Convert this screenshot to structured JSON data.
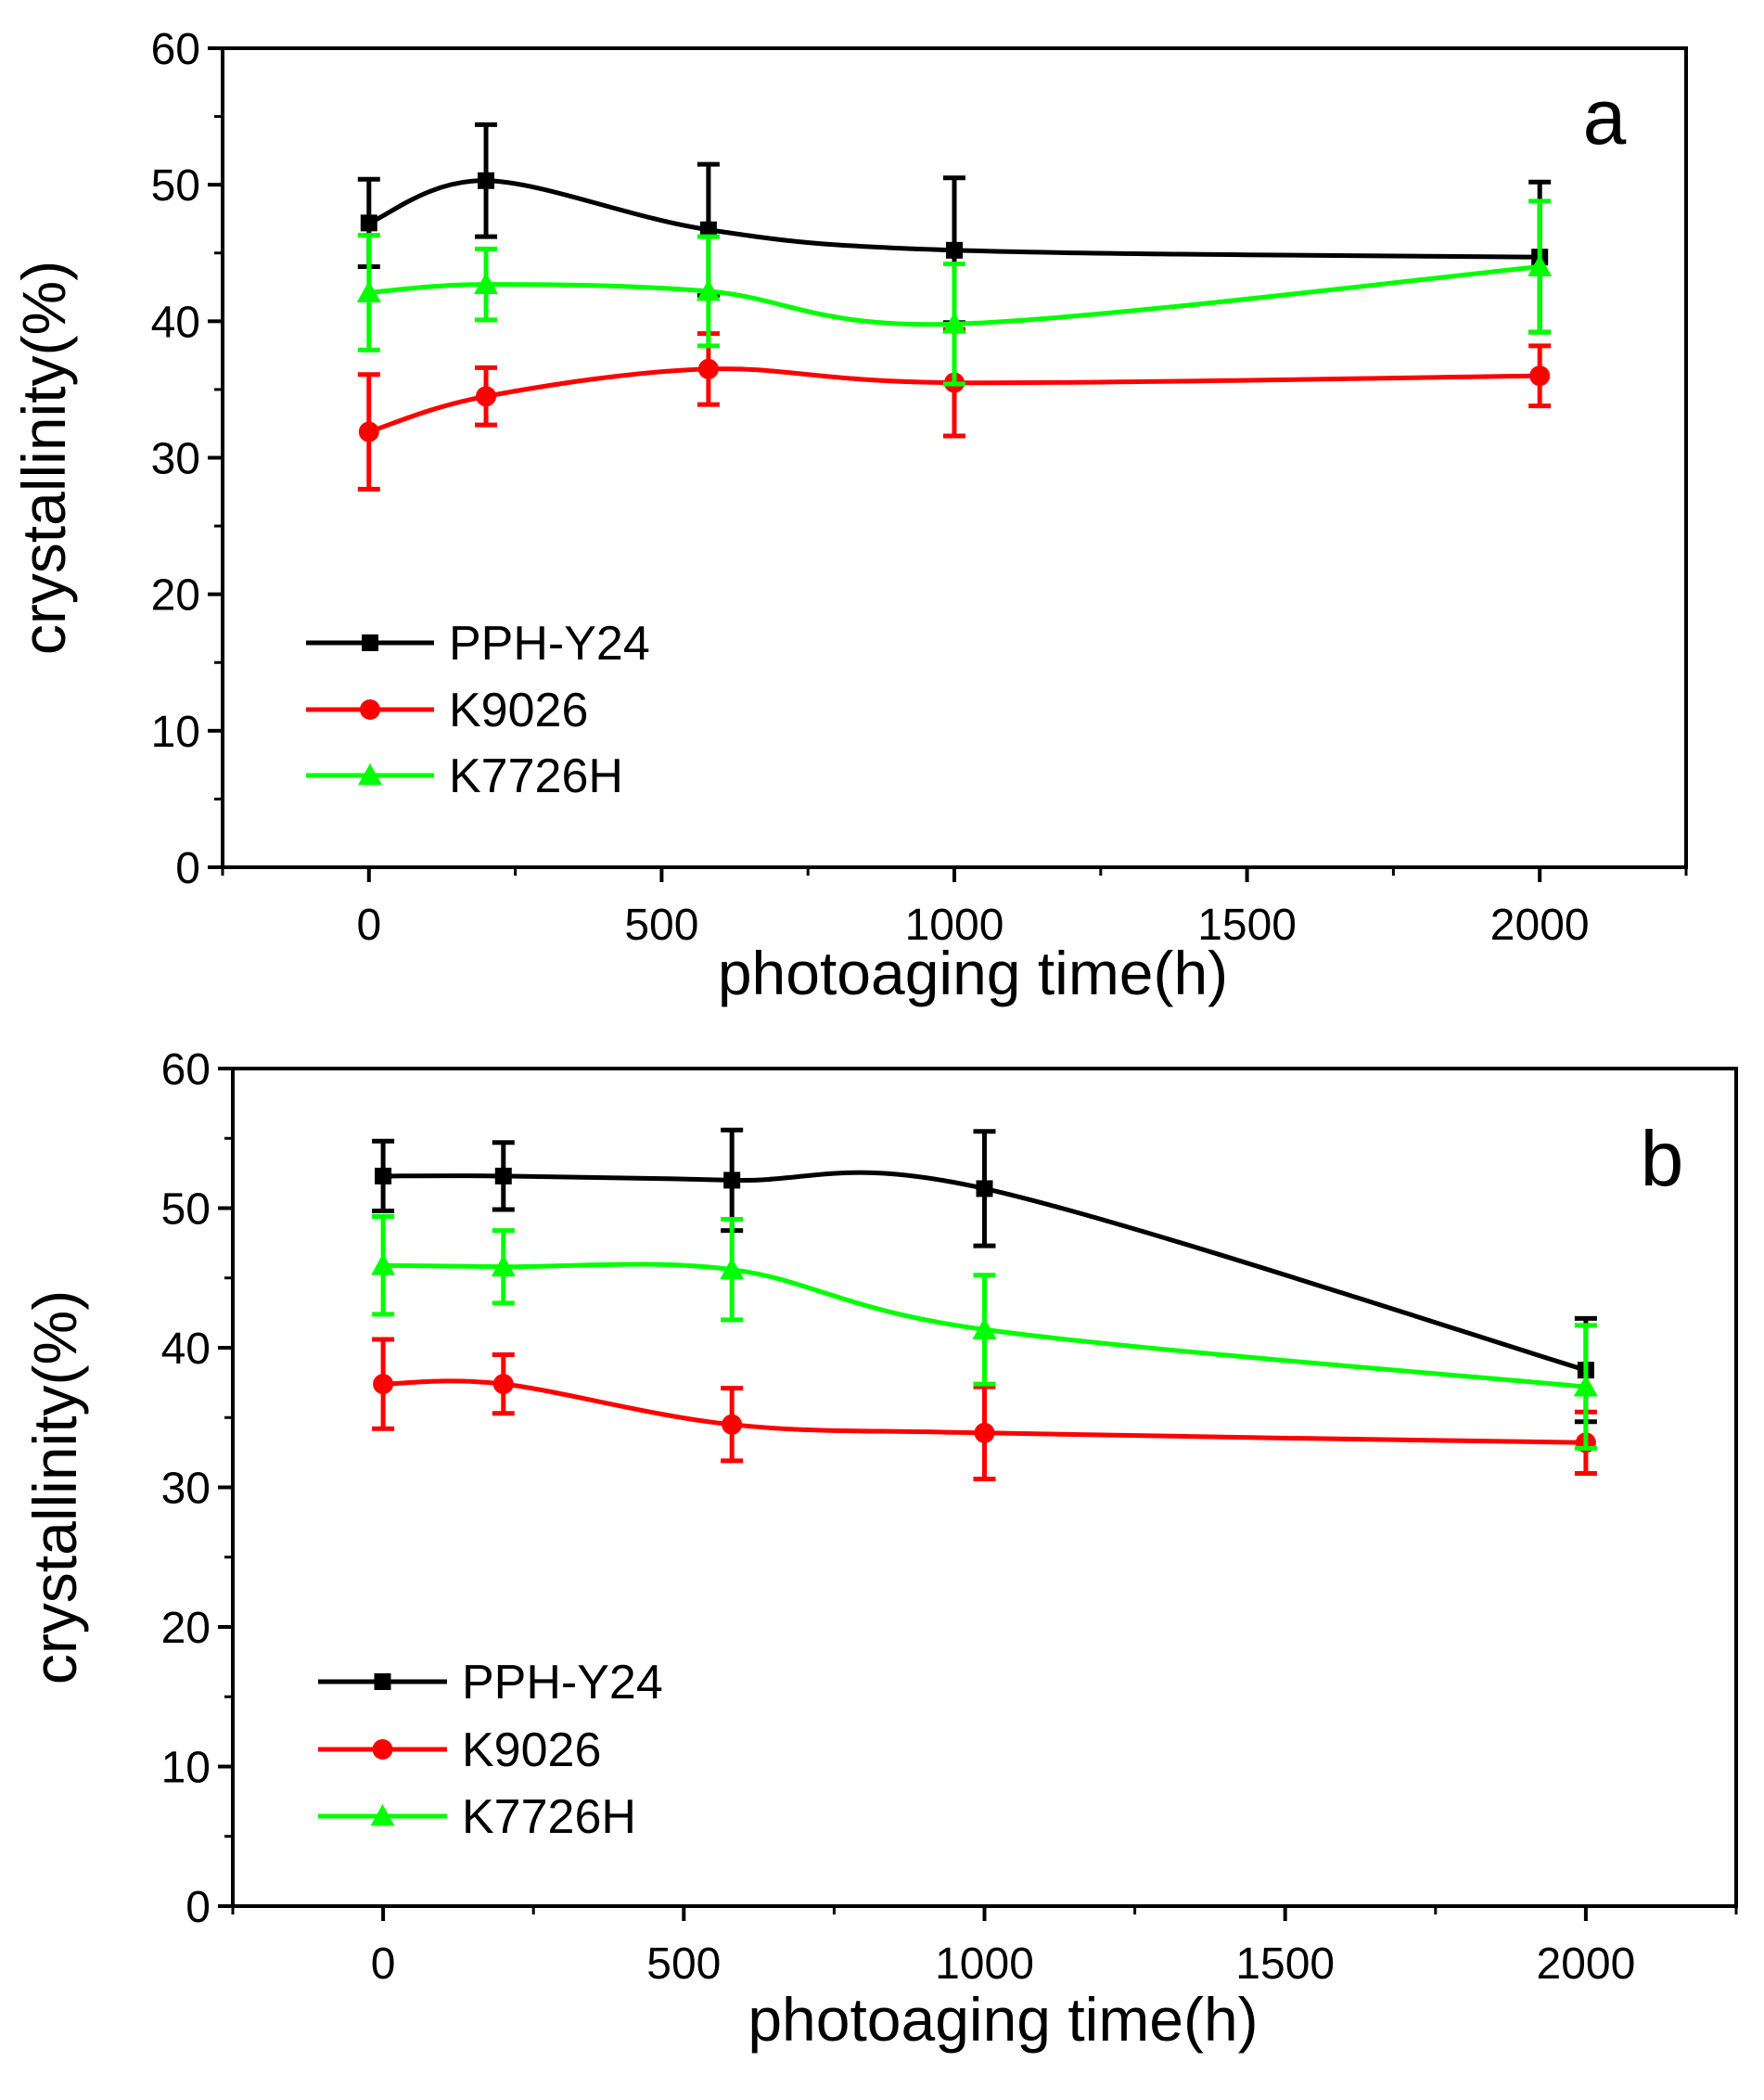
{
  "chart_data": [
    {
      "type": "line",
      "panel_label": "a",
      "xlabel": "photoaging time(h)",
      "ylabel": "crystallinity(%)",
      "xlim": [
        -250,
        2250
      ],
      "ylim": [
        0,
        60
      ],
      "x_ticks": [
        0,
        500,
        1000,
        1500,
        2000
      ],
      "y_ticks": [
        0,
        10,
        20,
        30,
        40,
        50,
        60
      ],
      "x_tick_labels": [
        "0",
        "500",
        "1000",
        "1500",
        "2000"
      ],
      "y_tick_labels": [
        "0",
        "10",
        "20",
        "30",
        "40",
        "50",
        "60"
      ],
      "legend_position": "bottom-left",
      "series": [
        {
          "name": "PPH-Y24",
          "color": "#000000",
          "marker": "square",
          "x": [
            0,
            200,
            580,
            1000,
            2000
          ],
          "y": [
            47.2,
            50.3,
            46.7,
            45.2,
            44.7
          ],
          "err": [
            3.2,
            4.1,
            4.8,
            5.3,
            5.5
          ]
        },
        {
          "name": "K9026",
          "color": "#ff0000",
          "marker": "circle",
          "x": [
            0,
            200,
            580,
            1000,
            2000
          ],
          "y": [
            31.9,
            34.5,
            36.5,
            35.5,
            36.0
          ],
          "err": [
            4.2,
            2.1,
            2.6,
            3.9,
            2.2
          ]
        },
        {
          "name": "K7726H",
          "color": "#00ff00",
          "marker": "triangle",
          "x": [
            0,
            200,
            580,
            1000,
            2000
          ],
          "y": [
            42.1,
            42.7,
            42.2,
            39.8,
            44.0
          ],
          "err": [
            4.2,
            2.6,
            4.0,
            4.4,
            4.8
          ]
        }
      ]
    },
    {
      "type": "line",
      "panel_label": "b",
      "xlabel": "photoaging time(h)",
      "ylabel": "crystallinity(%)",
      "xlim": [
        -250,
        2250
      ],
      "ylim": [
        0,
        60
      ],
      "x_ticks": [
        0,
        500,
        1000,
        1500,
        2000
      ],
      "y_ticks": [
        0,
        10,
        20,
        30,
        40,
        50,
        60
      ],
      "x_tick_labels": [
        "0",
        "500",
        "1000",
        "1500",
        "2000"
      ],
      "y_tick_labels": [
        "0",
        "10",
        "20",
        "30",
        "40",
        "50",
        "60"
      ],
      "legend_position": "bottom-left",
      "series": [
        {
          "name": "PPH-Y24",
          "color": "#000000",
          "marker": "square",
          "x": [
            0,
            200,
            580,
            1000,
            2000
          ],
          "y": [
            52.3,
            52.3,
            52.0,
            51.4,
            38.4
          ],
          "err": [
            2.5,
            2.4,
            3.6,
            4.1,
            3.7
          ]
        },
        {
          "name": "K9026",
          "color": "#ff0000",
          "marker": "circle",
          "x": [
            0,
            200,
            580,
            1000,
            2000
          ],
          "y": [
            37.4,
            37.4,
            34.5,
            33.9,
            33.2
          ],
          "err": [
            3.2,
            2.1,
            2.6,
            3.3,
            2.2
          ]
        },
        {
          "name": "K7726H",
          "color": "#00ff00",
          "marker": "triangle",
          "x": [
            0,
            200,
            580,
            1000,
            2000
          ],
          "y": [
            45.9,
            45.8,
            45.6,
            41.3,
            37.2
          ],
          "err": [
            3.5,
            2.6,
            3.6,
            3.9,
            4.4
          ]
        }
      ]
    }
  ]
}
